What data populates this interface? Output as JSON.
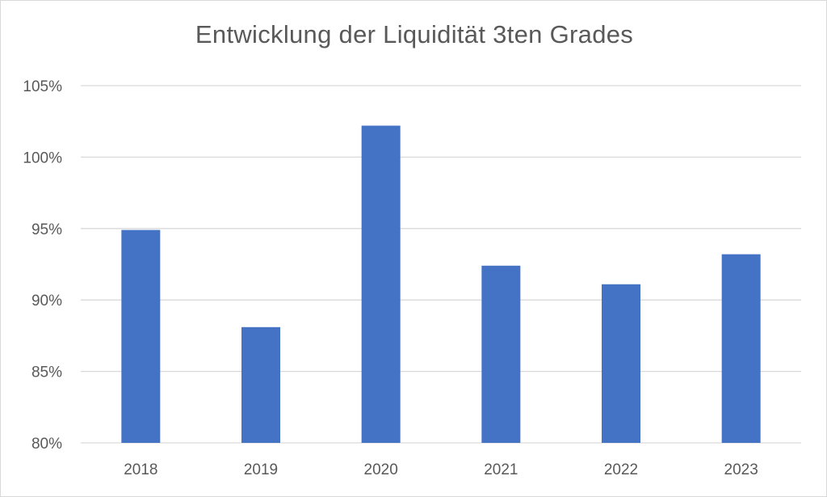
{
  "chart_data": {
    "type": "bar",
    "title": "Entwicklung der Liquidität 3ten Grades",
    "xlabel": "",
    "ylabel": "",
    "categories": [
      "2018",
      "2019",
      "2020",
      "2021",
      "2022",
      "2023"
    ],
    "values": [
      94.9,
      88.1,
      102.2,
      92.4,
      91.1,
      93.2
    ],
    "ylim": [
      80,
      105
    ],
    "yticks": [
      80,
      85,
      90,
      95,
      100,
      105
    ],
    "ytick_labels": [
      "80%",
      "85%",
      "90%",
      "95%",
      "100%",
      "105%"
    ],
    "grid": true,
    "legend": "none",
    "bar_color": "#4472C4",
    "grid_color": "#d9d9d9"
  }
}
